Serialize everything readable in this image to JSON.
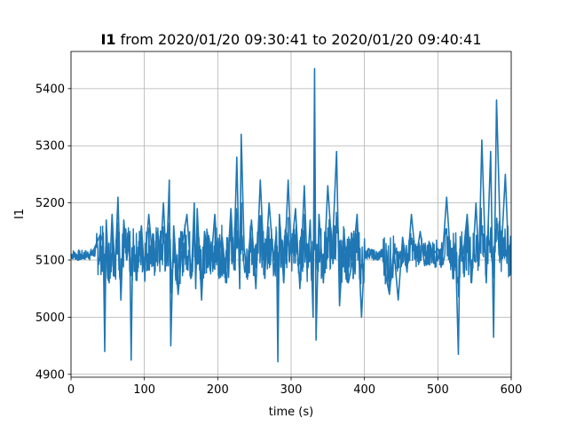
{
  "chart_data": {
    "type": "line",
    "title_bold": "I1",
    "title_rest": " from 2020/01/20 09:30:41 to 2020/01/20 09:40:41",
    "xlabel": "time (s)",
    "ylabel": "I1",
    "xlim": [
      0,
      600
    ],
    "ylim": [
      4895,
      5465
    ],
    "xticks": [
      0,
      100,
      200,
      300,
      400,
      500,
      600
    ],
    "yticks": [
      4900,
      5000,
      5100,
      5200,
      5300,
      5400
    ],
    "grid": true,
    "color": "#1f77b4",
    "series": [
      {
        "values_x": [
          0,
          10,
          20,
          30,
          35,
          40,
          44,
          46,
          48,
          52,
          56,
          60,
          64,
          68,
          72,
          76,
          80,
          82,
          84,
          90,
          96,
          100,
          106,
          112,
          118,
          122,
          126,
          130,
          134,
          136,
          140,
          146,
          152,
          158,
          164,
          168,
          170,
          172,
          178,
          182,
          190,
          196,
          200,
          206,
          212,
          218,
          222,
          226,
          230,
          232,
          236,
          240,
          246,
          252,
          258,
          264,
          270,
          276,
          280,
          282,
          284,
          290,
          296,
          300,
          306,
          312,
          318,
          322,
          326,
          330,
          332,
          334,
          338,
          344,
          350,
          356,
          362,
          366,
          372,
          378,
          384,
          390,
          396,
          400,
          406,
          412,
          418,
          424,
          428,
          434,
          440,
          446,
          452,
          458,
          464,
          470,
          476,
          482,
          488,
          494,
          500,
          506,
          512,
          518,
          524,
          528,
          530,
          534,
          540,
          546,
          552,
          556,
          560,
          566,
          572,
          576,
          580,
          586,
          592,
          596,
          600
        ],
        "values_y": [
          5110,
          5100,
          5105,
          5115,
          5130,
          5145,
          5130,
          4940,
          5170,
          5060,
          5180,
          5080,
          5210,
          5030,
          5170,
          5100,
          5140,
          4925,
          5120,
          5090,
          5160,
          5080,
          5180,
          5090,
          5150,
          5110,
          5200,
          5090,
          5240,
          4950,
          5160,
          5040,
          5130,
          5180,
          5070,
          5200,
          5050,
          5190,
          5030,
          5150,
          5080,
          5180,
          5100,
          5140,
          5060,
          5190,
          5090,
          5280,
          5050,
          5320,
          5120,
          5080,
          5170,
          5050,
          5240,
          5070,
          5200,
          5100,
          5150,
          4922,
          5180,
          5060,
          5240,
          5110,
          5190,
          5050,
          5230,
          5080,
          5170,
          5000,
          5435,
          4960,
          5180,
          5060,
          5230,
          5110,
          5290,
          5020,
          5150,
          5060,
          5100,
          5180,
          5000,
          5110,
          5120,
          5105,
          5100,
          5115,
          5080,
          5040,
          5120,
          5030,
          5140,
          5080,
          5180,
          5100,
          5150,
          5090,
          5130,
          5110,
          5120,
          5100,
          5210,
          5090,
          5130,
          4935,
          5120,
          5100,
          5180,
          5060,
          5200,
          5090,
          5310,
          5060,
          5290,
          4965,
          5380,
          5100,
          5250,
          5120,
          5130
        ]
      }
    ]
  }
}
